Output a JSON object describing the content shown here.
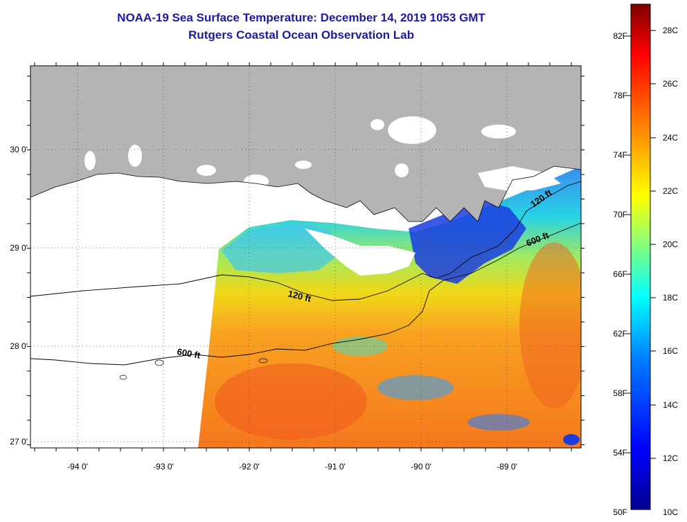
{
  "title": "NOAA-19 Sea Surface Temperature:  December 14, 2019 1053 GMT",
  "subtitle": "Rutgers Coastal Ocean Observation Lab",
  "map": {
    "lat_labels": [
      "30 0'",
      "29 0'",
      "28 0'",
      "27 0'"
    ],
    "lat_values": [
      30,
      29,
      28,
      27
    ],
    "lon_labels": [
      "-94 0'",
      "-93 0'",
      "-92 0'",
      "-91 0'",
      "-90 0'",
      "-89 0'"
    ],
    "lon_values": [
      -94,
      -93,
      -92,
      -91,
      -90,
      -89
    ],
    "lon_range": [
      -94.55,
      -88.25
    ],
    "lat_range": [
      26.93,
      30.85
    ],
    "contour_labels": [
      "120 ft",
      "600 ft",
      "120 ft",
      "600 ft"
    ],
    "land_color": "#b4b4b4",
    "cloud_color": "#ffffff"
  },
  "colorbar": {
    "f_labels": [
      "82F",
      "78F",
      "74F",
      "70F",
      "66F",
      "62F",
      "58F",
      "54F",
      "50F"
    ],
    "c_labels": [
      "28C",
      "26C",
      "24C",
      "22C",
      "20C",
      "18C",
      "16C",
      "14C",
      "12C",
      "10C"
    ],
    "colors": [
      "#7f0000",
      "#ff0000",
      "#ff8000",
      "#ffff00",
      "#80ff80",
      "#00ffff",
      "#0080ff",
      "#0000ff",
      "#00008f"
    ]
  }
}
